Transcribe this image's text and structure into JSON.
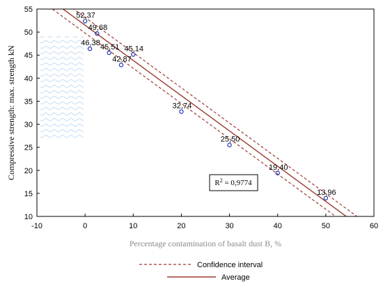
{
  "colors": {
    "fit_line": "#9b3a2e",
    "ci_line": "#9b3a2e",
    "points": "#1f2fb8",
    "axis_title": "#8a8a8a",
    "hatch": "#bcd8f2"
  },
  "chart_data": {
    "type": "scatter",
    "xlabel": "Percentage contamination of basalt dust B, %",
    "ylabel": "Compressive strength: max. strength kN",
    "xlim": [
      -10,
      60
    ],
    "ylim": [
      10,
      55
    ],
    "xticks": [
      -10,
      0,
      10,
      20,
      30,
      40,
      50,
      60
    ],
    "yticks": [
      10,
      15,
      20,
      25,
      30,
      35,
      40,
      45,
      50,
      55
    ],
    "grid": false,
    "points": [
      {
        "x": 0,
        "y": 52.37,
        "label": "52,37"
      },
      {
        "x": 2.5,
        "y": 49.68,
        "label": "49,68"
      },
      {
        "x": 1,
        "y": 46.38,
        "label": "46,38"
      },
      {
        "x": 5,
        "y": 45.51,
        "label": "45,51"
      },
      {
        "x": 10,
        "y": 45.14,
        "label": "45,14"
      },
      {
        "x": 7.5,
        "y": 42.87,
        "label": "42,87"
      },
      {
        "x": 20,
        "y": 32.74,
        "label": "32,74"
      },
      {
        "x": 30,
        "y": 25.5,
        "label": "25,50"
      },
      {
        "x": 40,
        "y": 19.4,
        "label": "19,40"
      },
      {
        "x": 50,
        "y": 13.96,
        "label": "13,96"
      }
    ],
    "fit": {
      "intercept": 51.5,
      "slope": -0.765
    },
    "confidence_offset": 1.7,
    "annotation": {
      "prefix": "R",
      "superscript": "2",
      "value": " = 0,9774"
    },
    "legend": [
      {
        "name": "Confidence interval",
        "style": "dashed"
      },
      {
        "name": "Average",
        "style": "solid"
      }
    ],
    "legend_position": "bottom-center"
  }
}
